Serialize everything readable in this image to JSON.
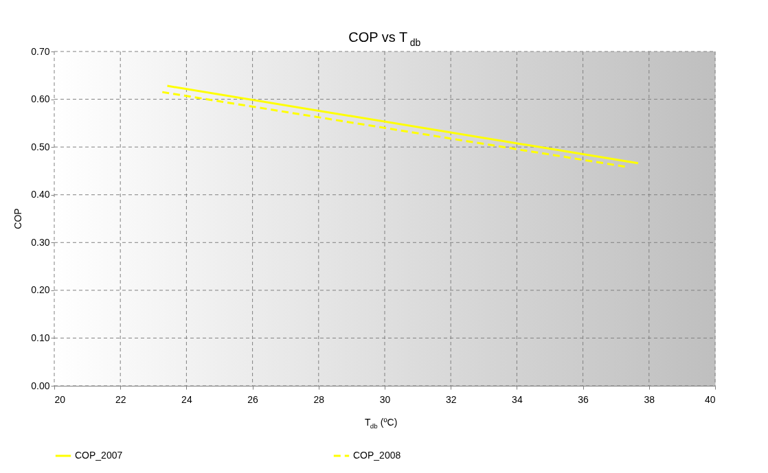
{
  "chart_data": {
    "type": "line",
    "title": "COP vs T$_{db}$",
    "xlabel": "T$_{db}$ (ºC)",
    "ylabel": "COP",
    "series": [
      {
        "name": "COP_2007",
        "color": "#ffff00",
        "line_style": "solid",
        "x": [
          23.42,
          37.67
        ],
        "values": [
          0.628,
          0.466
        ]
      },
      {
        "name": "COP_2008",
        "color": "#ffff00",
        "line_style": "dashed",
        "x": [
          23.27,
          37.27
        ],
        "values": [
          0.615,
          0.459
        ]
      }
    ],
    "xlim": [
      20,
      40
    ],
    "xticks": [
      20,
      22,
      24,
      26,
      28,
      30,
      32,
      34,
      36,
      38,
      40
    ],
    "ylim": [
      0,
      0.7
    ],
    "yticks": [
      {
        "value": 0,
        "label": "0.00"
      },
      {
        "value": 0.1,
        "label": "0.10"
      },
      {
        "value": 0.2,
        "label": "0.20"
      },
      {
        "value": 0.3,
        "label": "0.30"
      },
      {
        "value": 0.4,
        "label": "0.40"
      },
      {
        "value": 0.5,
        "label": "0.50"
      },
      {
        "value": 0.6,
        "label": "0.60"
      },
      {
        "value": 0.7,
        "label": "0.70"
      }
    ],
    "grid": true,
    "legend": "bottom",
    "marker": "none"
  }
}
